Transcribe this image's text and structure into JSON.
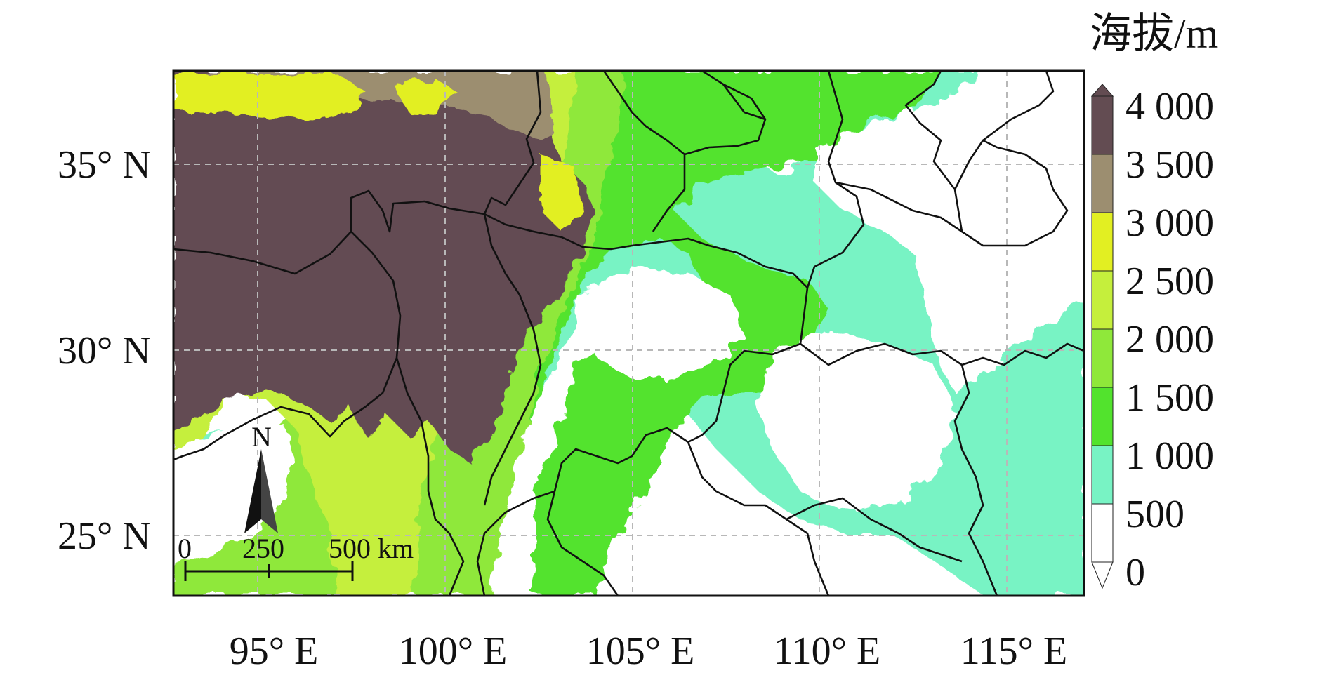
{
  "map": {
    "lat_labels": [
      "35° N",
      "30° N",
      "25° N"
    ],
    "lon_labels": [
      "95° E",
      "100° E",
      "105° E",
      "110° E",
      "115° E"
    ]
  },
  "legend": {
    "title": "海拔/m",
    "tick_labels": [
      "4 000",
      "3 500",
      "3 000",
      "2 500",
      "2 000",
      "1 500",
      "1 000",
      "500",
      "0"
    ],
    "classes": [
      {
        "range": "3500-4000",
        "color": "#634c52"
      },
      {
        "range": "3000-3500",
        "color": "#9c8e70"
      },
      {
        "range": "2500-3000",
        "color": "#e2ef22"
      },
      {
        "range": "2000-2500",
        "color": "#c5ef3c"
      },
      {
        "range": "1500-2000",
        "color": "#8fe83a"
      },
      {
        "range": "1000-1500",
        "color": "#52e32d"
      },
      {
        "range": "500-1000",
        "color": "#78f3c4"
      },
      {
        "range": "0-500",
        "color": "#ffffff"
      }
    ]
  },
  "north_arrow": {
    "label": "N"
  },
  "scale_bar": {
    "labels": [
      "0",
      "250",
      "500 km"
    ]
  }
}
